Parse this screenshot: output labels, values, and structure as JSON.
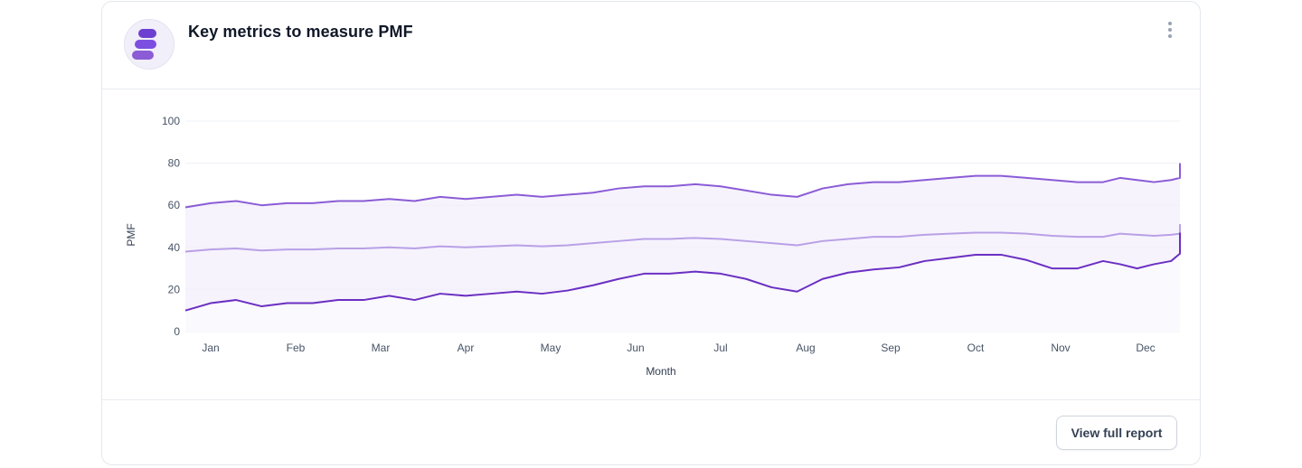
{
  "card": {
    "title": "Key metrics to measure PMF",
    "logo_icon": "stacked-bars-logo",
    "menu_icon": "kebab-vertical-icon",
    "report_button": "View full report"
  },
  "colors": {
    "series_top": "#8b5cd6",
    "series_mid": "#b9a0e6",
    "series_bottom": "#6b2fc2",
    "band_fill": "#f3effc",
    "grid": "#eef0f4",
    "tick_text": "#475467",
    "logo": "#6d3fd1"
  },
  "chart_data": {
    "type": "line",
    "ylabel": "PMF",
    "xlabel": "Month",
    "ylim": [
      0,
      100
    ],
    "yticks": [
      0,
      20,
      40,
      60,
      80,
      100
    ],
    "xticks": [
      "Jan",
      "Feb",
      "Mar",
      "Apr",
      "May",
      "Jun",
      "Jul",
      "Aug",
      "Sep",
      "Oct",
      "Nov",
      "Dec"
    ],
    "x_range": [
      0,
      11.8
    ],
    "grid": true,
    "legend": "none",
    "band": "shaded between upper and lower series",
    "x": [
      -0.3,
      0,
      0.3,
      0.6,
      0.9,
      1.2,
      1.5,
      1.8,
      2.1,
      2.4,
      2.7,
      3.0,
      3.3,
      3.6,
      3.9,
      4.2,
      4.5,
      4.8,
      5.1,
      5.4,
      5.7,
      6.0,
      6.3,
      6.6,
      6.9,
      7.2,
      7.5,
      7.8,
      8.1,
      8.4,
      8.7,
      9.0,
      9.3,
      9.6,
      9.9,
      10.2,
      10.5,
      10.7,
      10.9,
      11.1,
      11.3,
      11.5,
      11.8
    ],
    "series": [
      {
        "values": [
          59,
          61,
          62,
          60,
          61,
          61,
          62,
          62,
          63,
          62,
          64,
          63,
          64,
          65,
          64,
          65,
          66,
          68,
          69,
          69,
          70,
          69,
          67,
          65,
          64,
          68,
          70,
          71,
          71,
          72,
          73,
          74,
          74,
          73,
          72,
          71,
          71,
          73,
          72,
          71,
          72,
          73,
          80
        ]
      },
      {
        "values": [
          38,
          39,
          39.5,
          38.5,
          39,
          39,
          39.5,
          39.5,
          40,
          39.5,
          40.5,
          40,
          40.5,
          41,
          40.5,
          41,
          42,
          43,
          44,
          44,
          44.5,
          44,
          43,
          42,
          41,
          43,
          44,
          45,
          45,
          46,
          46.5,
          47,
          47,
          46.5,
          45.5,
          45,
          45,
          46.5,
          46,
          45.5,
          46,
          46.5,
          51
        ]
      },
      {
        "values": [
          10,
          13.5,
          15,
          12,
          13.5,
          13.5,
          15,
          15,
          17,
          15,
          18,
          17,
          18,
          19,
          18,
          19.5,
          22,
          25,
          27.5,
          27.5,
          28.5,
          27.5,
          25,
          21,
          19,
          25,
          28,
          29.5,
          30.5,
          33.5,
          35,
          36.5,
          36.5,
          34,
          30,
          30,
          33.5,
          32,
          30,
          32,
          33.5,
          37,
          47
        ]
      }
    ]
  }
}
